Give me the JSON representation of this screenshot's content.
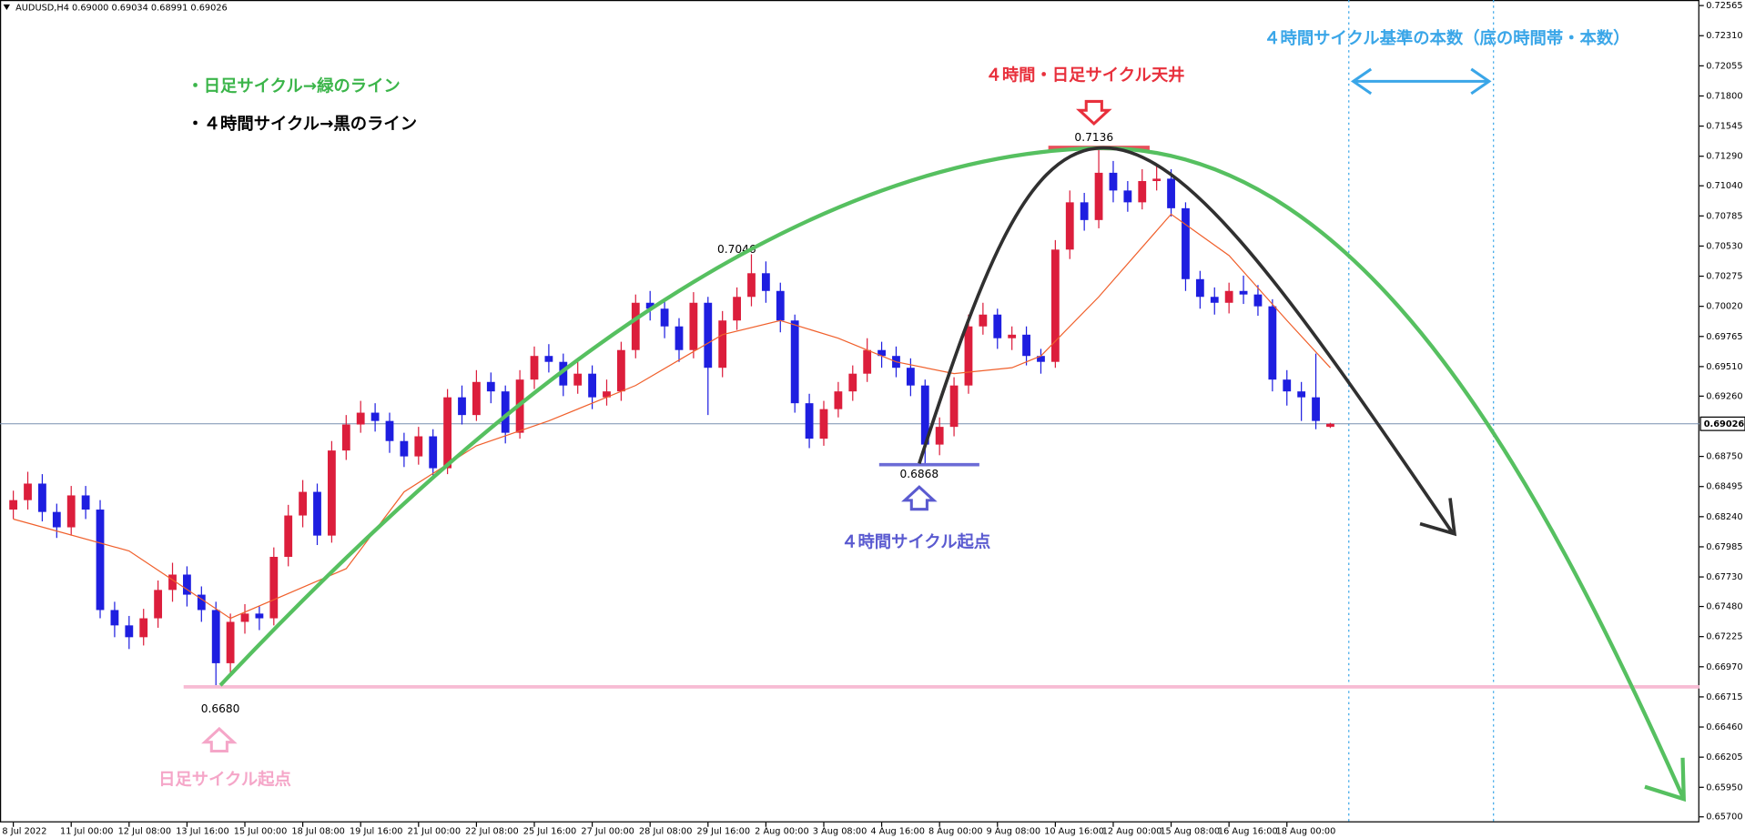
{
  "chart_data": {
    "type": "candlestick",
    "symbol_header": "AUDUSD,H4  0.69000 0.69034 0.68991 0.69026",
    "xlim": [
      -0.92,
      116.5
    ],
    "ylim": [
      0.65653,
      0.72612
    ],
    "xticks": [
      {
        "value": 0,
        "label": "8 Jul 2022"
      },
      {
        "value": 4,
        "label": "11 Jul 00:00"
      },
      {
        "value": 8,
        "label": "12 Jul 08:00"
      },
      {
        "value": 12,
        "label": "13 Jul 16:00"
      },
      {
        "value": 16,
        "label": "15 Jul 00:00"
      },
      {
        "value": 20,
        "label": "18 Jul 08:00"
      },
      {
        "value": 24,
        "label": "19 Jul 16:00"
      },
      {
        "value": 28,
        "label": "21 Jul 00:00"
      },
      {
        "value": 32,
        "label": "22 Jul 08:00"
      },
      {
        "value": 36,
        "label": "25 Jul 16:00"
      },
      {
        "value": 40,
        "label": "27 Jul 00:00"
      },
      {
        "value": 44,
        "label": "28 Jul 08:00"
      },
      {
        "value": 48,
        "label": "29 Jul 16:00"
      },
      {
        "value": 52,
        "label": "2 Aug 00:00"
      },
      {
        "value": 56,
        "label": "3 Aug 08:00"
      },
      {
        "value": 60,
        "label": "4 Aug 16:00"
      },
      {
        "value": 64,
        "label": "8 Aug 00:00"
      },
      {
        "value": 68,
        "label": "9 Aug 08:00"
      },
      {
        "value": 72,
        "label": "10 Aug 16:00"
      },
      {
        "value": 76,
        "label": "12 Aug 00:00"
      },
      {
        "value": 80,
        "label": "15 Aug 08:00"
      },
      {
        "value": 84,
        "label": "16 Aug 16:00"
      },
      {
        "value": 88,
        "label": "18 Aug 00:00"
      }
    ],
    "yticks": [
      0.72565,
      {
        "value": 0.7231,
        "label": "0.72310"
      },
      0.72055,
      {
        "value": 0.718,
        "label": "0.71800"
      },
      0.71545,
      {
        "value": 0.7129,
        "label": "0.71290"
      },
      {
        "value": 0.7104,
        "label": "0.71040"
      },
      0.70785,
      {
        "value": 0.7053,
        "label": "0.70530"
      },
      0.70275,
      {
        "value": 0.7002,
        "label": "0.70020"
      },
      0.69765,
      {
        "value": 0.6951,
        "label": "0.69510"
      },
      {
        "value": 0.6926,
        "label": "0.69260"
      },
      {
        "value": 0.6875,
        "label": "0.68750"
      },
      0.68495,
      {
        "value": 0.6824,
        "label": "0.68240"
      },
      0.67985,
      {
        "value": 0.6773,
        "label": "0.67730"
      },
      {
        "value": 0.6748,
        "label": "0.67480"
      },
      0.67225,
      {
        "value": 0.6697,
        "label": "0.66970"
      },
      0.66715,
      {
        "value": 0.6646,
        "label": "0.66460"
      },
      0.66205,
      {
        "value": 0.6595,
        "label": "0.65950"
      },
      {
        "value": 0.657,
        "label": "0.65700"
      }
    ],
    "up_color": "#dc1e3c",
    "down_color": "#1e1ee0",
    "ohlc": [
      [
        0.683,
        0.6846,
        0.6822,
        0.6838
      ],
      [
        0.6838,
        0.6862,
        0.683,
        0.6852
      ],
      [
        0.6852,
        0.686,
        0.682,
        0.6828
      ],
      [
        0.6828,
        0.6835,
        0.6806,
        0.6815
      ],
      [
        0.6815,
        0.685,
        0.6808,
        0.6842
      ],
      [
        0.6842,
        0.685,
        0.6822,
        0.683
      ],
      [
        0.683,
        0.6838,
        0.6738,
        0.6745
      ],
      [
        0.6745,
        0.6752,
        0.6722,
        0.6732
      ],
      [
        0.6732,
        0.674,
        0.6712,
        0.6722
      ],
      [
        0.6722,
        0.6746,
        0.6715,
        0.6738
      ],
      [
        0.6738,
        0.677,
        0.673,
        0.6762
      ],
      [
        0.6762,
        0.6785,
        0.6752,
        0.6775
      ],
      [
        0.6775,
        0.6782,
        0.6748,
        0.6758
      ],
      [
        0.6758,
        0.6765,
        0.6735,
        0.6745
      ],
      [
        0.6745,
        0.6752,
        0.668,
        0.67
      ],
      [
        0.67,
        0.6742,
        0.6692,
        0.6735
      ],
      [
        0.6735,
        0.675,
        0.6725,
        0.6742
      ],
      [
        0.6742,
        0.6748,
        0.6728,
        0.6738
      ],
      [
        0.6738,
        0.6798,
        0.6732,
        0.679
      ],
      [
        0.679,
        0.6834,
        0.6782,
        0.6825
      ],
      [
        0.6825,
        0.6855,
        0.6815,
        0.6845
      ],
      [
        0.6845,
        0.6852,
        0.68,
        0.6808
      ],
      [
        0.6808,
        0.6888,
        0.6802,
        0.688
      ],
      [
        0.688,
        0.691,
        0.6872,
        0.6902
      ],
      [
        0.6902,
        0.6922,
        0.6895,
        0.6912
      ],
      [
        0.6912,
        0.692,
        0.6896,
        0.6905
      ],
      [
        0.6905,
        0.6912,
        0.6878,
        0.6888
      ],
      [
        0.6888,
        0.6895,
        0.6866,
        0.6875
      ],
      [
        0.6875,
        0.69,
        0.6868,
        0.6892
      ],
      [
        0.6892,
        0.6898,
        0.6856,
        0.6865
      ],
      [
        0.6865,
        0.6932,
        0.686,
        0.6925
      ],
      [
        0.6925,
        0.6935,
        0.6902,
        0.691
      ],
      [
        0.691,
        0.6948,
        0.6905,
        0.6938
      ],
      [
        0.6938,
        0.6946,
        0.692,
        0.693
      ],
      [
        0.693,
        0.6935,
        0.6886,
        0.6895
      ],
      [
        0.6895,
        0.6948,
        0.689,
        0.694
      ],
      [
        0.694,
        0.6968,
        0.6932,
        0.696
      ],
      [
        0.696,
        0.697,
        0.6946,
        0.6955
      ],
      [
        0.6955,
        0.6962,
        0.6926,
        0.6935
      ],
      [
        0.6935,
        0.6955,
        0.6928,
        0.6945
      ],
      [
        0.6945,
        0.6952,
        0.6915,
        0.6925
      ],
      [
        0.6925,
        0.694,
        0.6918,
        0.693
      ],
      [
        0.693,
        0.6972,
        0.6922,
        0.6965
      ],
      [
        0.6965,
        0.7012,
        0.6958,
        0.7005
      ],
      [
        0.7005,
        0.7015,
        0.699,
        0.7
      ],
      [
        0.7,
        0.7008,
        0.6975,
        0.6985
      ],
      [
        0.6985,
        0.6992,
        0.6955,
        0.6965
      ],
      [
        0.6965,
        0.7014,
        0.6958,
        0.7005
      ],
      [
        0.7005,
        0.701,
        0.691,
        0.695
      ],
      [
        0.695,
        0.6998,
        0.6942,
        0.699
      ],
      [
        0.699,
        0.7018,
        0.6982,
        0.701
      ],
      [
        0.701,
        0.7046,
        0.7002,
        0.703
      ],
      [
        0.703,
        0.704,
        0.7005,
        0.7015
      ],
      [
        0.7015,
        0.7022,
        0.698,
        0.699
      ],
      [
        0.699,
        0.6995,
        0.6912,
        0.692
      ],
      [
        0.692,
        0.6928,
        0.6882,
        0.689
      ],
      [
        0.689,
        0.6922,
        0.6884,
        0.6915
      ],
      [
        0.6915,
        0.6938,
        0.6908,
        0.693
      ],
      [
        0.693,
        0.6952,
        0.6922,
        0.6945
      ],
      [
        0.6945,
        0.6975,
        0.6938,
        0.6965
      ],
      [
        0.6965,
        0.6972,
        0.695,
        0.696
      ],
      [
        0.696,
        0.6968,
        0.6942,
        0.695
      ],
      [
        0.695,
        0.6958,
        0.6926,
        0.6935
      ],
      [
        0.6935,
        0.694,
        0.6868,
        0.6885
      ],
      [
        0.6885,
        0.6908,
        0.6876,
        0.69
      ],
      [
        0.69,
        0.6942,
        0.6892,
        0.6935
      ],
      [
        0.6935,
        0.6995,
        0.6928,
        0.6985
      ],
      [
        0.6985,
        0.7005,
        0.6978,
        0.6995
      ],
      [
        0.6995,
        0.7,
        0.6966,
        0.6975
      ],
      [
        0.6975,
        0.6985,
        0.6965,
        0.6978
      ],
      [
        0.6978,
        0.6985,
        0.6952,
        0.696
      ],
      [
        0.696,
        0.6966,
        0.6945,
        0.6955
      ],
      [
        0.6955,
        0.7058,
        0.695,
        0.705
      ],
      [
        0.705,
        0.71,
        0.7042,
        0.709
      ],
      [
        0.709,
        0.7098,
        0.7066,
        0.7075
      ],
      [
        0.7075,
        0.7136,
        0.7068,
        0.7115
      ],
      [
        0.7115,
        0.7125,
        0.709,
        0.71
      ],
      [
        0.71,
        0.7108,
        0.7082,
        0.709
      ],
      [
        0.709,
        0.7118,
        0.7084,
        0.7108
      ],
      [
        0.7108,
        0.7122,
        0.71,
        0.711
      ],
      [
        0.711,
        0.7118,
        0.7078,
        0.7085
      ],
      [
        0.7085,
        0.709,
        0.7015,
        0.7025
      ],
      [
        0.7025,
        0.7032,
        0.7,
        0.701
      ],
      [
        0.701,
        0.7018,
        0.6995,
        0.7005
      ],
      [
        0.7005,
        0.7022,
        0.6996,
        0.7015
      ],
      [
        0.7015,
        0.7028,
        0.7004,
        0.7012
      ],
      [
        0.7012,
        0.702,
        0.6994,
        0.7002
      ],
      [
        0.7002,
        0.7008,
        0.693,
        0.694
      ],
      [
        0.694,
        0.6948,
        0.6918,
        0.693
      ],
      [
        0.693,
        0.6938,
        0.6905,
        0.6925
      ],
      [
        0.6925,
        0.6962,
        0.6898,
        0.6905
      ],
      [
        0.69,
        0.69034,
        0.68991,
        0.69026
      ]
    ],
    "ma": {
      "color": "#f0602c",
      "x": [
        0,
        8,
        15,
        23,
        27,
        32,
        37,
        43,
        49,
        53,
        57,
        61,
        65,
        69,
        71,
        75,
        80,
        84,
        88,
        91
      ],
      "values": [
        0.6822,
        0.6795,
        0.6738,
        0.678,
        0.6845,
        0.6884,
        0.6905,
        0.6935,
        0.6978,
        0.699,
        0.6975,
        0.6955,
        0.6945,
        0.695,
        0.696,
        0.701,
        0.708,
        0.7045,
        0.699,
        0.695
      ]
    },
    "current_price": 0.69026,
    "levels": [
      {
        "value": 0.7136,
        "color": "#e8505b"
      },
      {
        "value": 0.6868,
        "color": "#6b6bd6"
      },
      {
        "value": 0.668,
        "label": "0.6680",
        "color": "#f7bcd4"
      }
    ],
    "peak_label": 0.7046,
    "annotations": [
      {
        "text": "・日足サイクル→緑のライン",
        "color": "#3bb54a"
      },
      {
        "text": "・４時間サイクル→黒のライン",
        "color": "#000000"
      },
      {
        "text": "４時間・日足サイクル天井",
        "color": "#e8303c"
      },
      {
        "text": "４時間サイクル起点",
        "color": "#5a5ad0"
      },
      {
        "text": "日足サイクル起点",
        "color": "#f5a6c8"
      },
      {
        "text": "４時間サイクル基準の本数（底の時間帯・本数）",
        "color": "#3aa6e8"
      }
    ]
  }
}
